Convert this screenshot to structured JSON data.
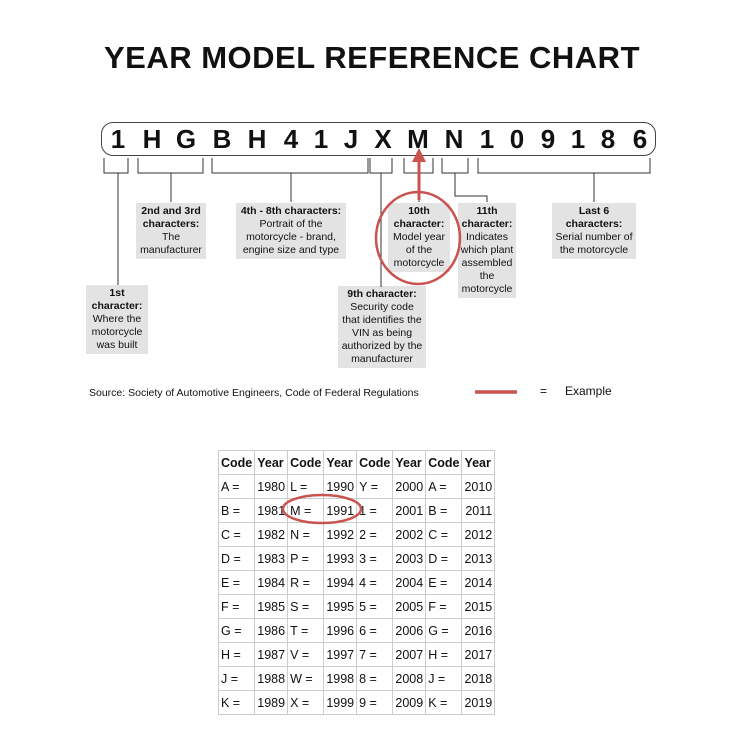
{
  "title": "YEAR MODEL REFERENCE CHART",
  "vin": [
    "1",
    "H",
    "G",
    "B",
    "H",
    "4",
    "1",
    "J",
    "X",
    "M",
    "N",
    "1",
    "0",
    "9",
    "1",
    "8",
    "6"
  ],
  "labels": {
    "c1": {
      "head": "1st character:",
      "body": "Where the motorcycle was built"
    },
    "c23": {
      "head": "2nd and 3rd characters:",
      "body": "The manufacturer"
    },
    "c48": {
      "head": "4th - 8th characters:",
      "body": "Portrait of the motorcycle - brand, engine size and type"
    },
    "c9": {
      "head": "9th character:",
      "body": "Security code that identifies the VIN as being authorized by the manufacturer"
    },
    "c10": {
      "head": "10th character:",
      "body": "Model year of the motorcycle"
    },
    "c11": {
      "head": "11th character:",
      "body": "Indicates which plant assembled the motorcycle"
    },
    "last6": {
      "head": "Last 6 characters:",
      "body": "Serial number of the motorcycle"
    }
  },
  "source": "Source:  Society of Automotive Engineers, Code of Federal Regulations",
  "legend": {
    "equals": "=",
    "label": "Example",
    "color": "#c9534f"
  },
  "table": {
    "headers": [
      "Code",
      "Year",
      "Code",
      "Year",
      "Code",
      "Year",
      "Code",
      "Year"
    ],
    "rows": [
      [
        "A =",
        "1980",
        "L =",
        "1990",
        "Y =",
        "2000",
        "A =",
        "2010"
      ],
      [
        "B =",
        "1981",
        "M =",
        "1991",
        "1 =",
        "2001",
        "B =",
        "2011"
      ],
      [
        "C =",
        "1982",
        "N =",
        "1992",
        "2 =",
        "2002",
        "C =",
        "2012"
      ],
      [
        "D =",
        "1983",
        "P =",
        "1993",
        "3 =",
        "2003",
        "D =",
        "2013"
      ],
      [
        "E =",
        "1984",
        "R =",
        "1994",
        "4 =",
        "2004",
        "E =",
        "2014"
      ],
      [
        "F =",
        "1985",
        "S =",
        "1995",
        "5 =",
        "2005",
        "F =",
        "2015"
      ],
      [
        "G =",
        "1986",
        "T =",
        "1996",
        "6 =",
        "2006",
        "G =",
        "2016"
      ],
      [
        "H =",
        "1987",
        "V =",
        "1997",
        "7 =",
        "2007",
        "H =",
        "2017"
      ],
      [
        "J =",
        "1988",
        "W =",
        "1998",
        "8 =",
        "2008",
        "J =",
        "2018"
      ],
      [
        "K =",
        "1989",
        "X =",
        "1999",
        "9 =",
        "2009",
        "K =",
        "2019"
      ]
    ]
  }
}
